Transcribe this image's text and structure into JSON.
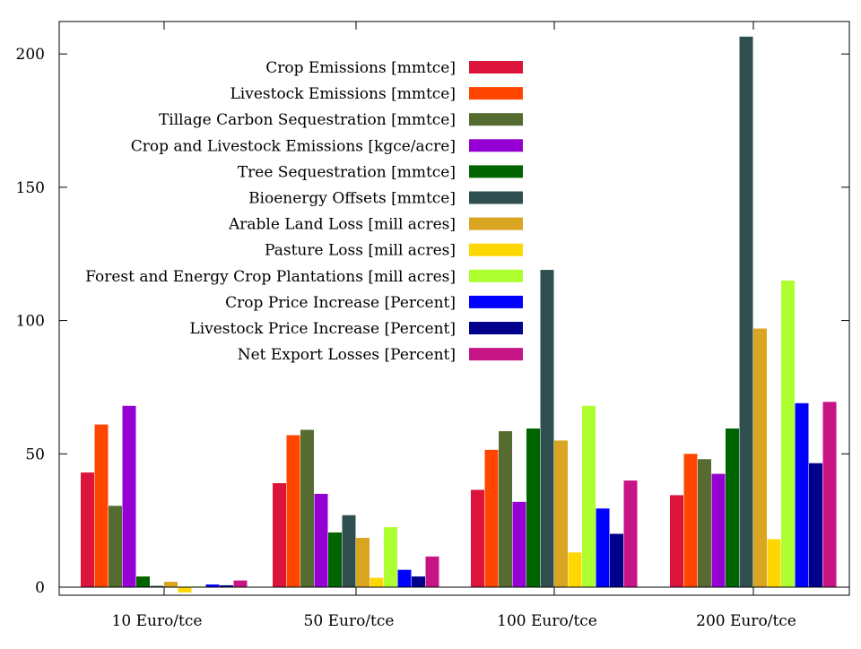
{
  "chart_data": {
    "type": "bar",
    "title": "",
    "xlabel": "",
    "ylabel": "",
    "ylim": [
      0,
      210
    ],
    "yticks": [
      0,
      50,
      100,
      150,
      200
    ],
    "grid": false,
    "legend_position": "top-center",
    "categories": [
      "10 Euro/tce",
      "50 Euro/tce",
      "100 Euro/tce",
      "200 Euro/tce"
    ],
    "series": [
      {
        "name": "Crop Emissions [mmtce]",
        "color": "#dc143c",
        "values": [
          43,
          39,
          36.5,
          34.5
        ]
      },
      {
        "name": "Livestock Emissions [mmtce]",
        "color": "#ff4500",
        "values": [
          61,
          57,
          51.5,
          50
        ]
      },
      {
        "name": "Tillage Carbon Sequestration [mmtce]",
        "color": "#556b2f",
        "values": [
          30.5,
          59,
          58.5,
          48
        ]
      },
      {
        "name": "Crop and Livestock Emissions [kgce/acre]",
        "color": "#9400d3",
        "values": [
          68,
          35,
          32,
          42.5
        ]
      },
      {
        "name": "Tree Sequestration [mmtce]",
        "color": "#006400",
        "values": [
          4,
          20.5,
          59.5,
          59.5
        ]
      },
      {
        "name": "Bioenergy Offsets [mmtce]",
        "color": "#2f4f4f",
        "values": [
          0.5,
          27,
          119,
          206.5
        ]
      },
      {
        "name": "Arable Land Loss [mill acres]",
        "color": "#daa520",
        "values": [
          2,
          18.5,
          55,
          97
        ]
      },
      {
        "name": "Pasture Loss [mill acres]",
        "color": "#ffd700",
        "values": [
          -2,
          3.5,
          13,
          18
        ]
      },
      {
        "name": "Forest and Energy Crop Plantations [mill acres]",
        "color": "#adff2f",
        "values": [
          0.3,
          22.5,
          68,
          115
        ]
      },
      {
        "name": "Crop Price Increase [Percent]",
        "color": "#0000ff",
        "values": [
          1,
          6.5,
          29.5,
          69
        ]
      },
      {
        "name": "Livestock Price Increase [Percent]",
        "color": "#00008b",
        "values": [
          0.7,
          4,
          20,
          46.5
        ]
      },
      {
        "name": "Net Export Losses [Percent]",
        "color": "#c71585",
        "values": [
          2.5,
          11.5,
          40,
          69.5
        ]
      }
    ]
  }
}
